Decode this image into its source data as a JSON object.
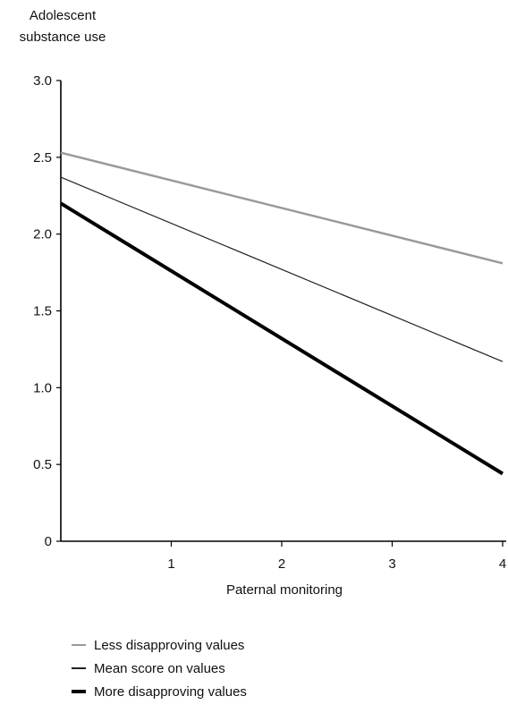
{
  "chart_data": {
    "type": "line",
    "ylabel": "Adolescent substance use",
    "xlabel": "Paternal monitoring",
    "xlim": [
      0,
      4
    ],
    "ylim": [
      0,
      3.0
    ],
    "x_ticks": [
      "1",
      "2",
      "3",
      "4"
    ],
    "y_ticks": [
      "0",
      "0.5",
      "1.0",
      "1.5",
      "2.0",
      "2.5",
      "3.0"
    ],
    "x": [
      0,
      4
    ],
    "series": [
      {
        "name": "Less disapproving values",
        "values": [
          2.53,
          1.81
        ],
        "color": "#9a9a9a",
        "style": "medium-gray"
      },
      {
        "name": "Mean score on values",
        "values": [
          2.37,
          1.17
        ],
        "color": "#222222",
        "style": "thin"
      },
      {
        "name": "More disapproving values",
        "values": [
          2.2,
          0.44
        ],
        "color": "#000000",
        "style": "thick"
      }
    ],
    "legend_position": "bottom-left",
    "grid": false
  }
}
